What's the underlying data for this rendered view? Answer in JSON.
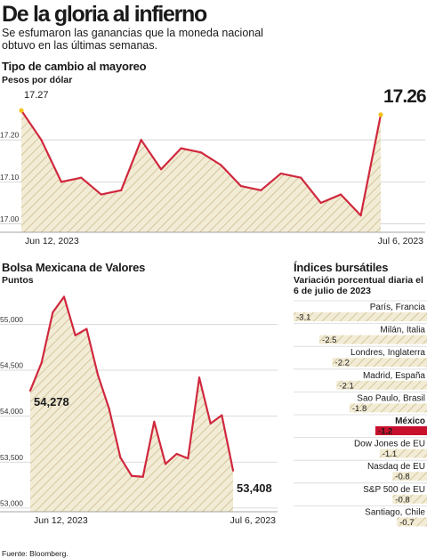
{
  "headline": "De la gloria al infierno",
  "subtitle": "Se esfumaron las ganancias que la moneda nacional obtuvo en las últimas semanas.",
  "source": "Fuente: Bloomberg.",
  "colors": {
    "line": "#d0283e",
    "fill": "#f2ecd6",
    "hatch": "#c8b784",
    "marker": "#f5c21b",
    "highlight": "#c8102e",
    "grid": "#cfcfcf"
  },
  "chart_data": [
    {
      "type": "area",
      "title": "Tipo de cambio al mayoreo",
      "subtitle": "Pesos por dólar",
      "x_start_label": "Jun 12, 2023",
      "x_end_label": "Jul 6, 2023",
      "start_value_label": "17.27",
      "end_value_label": "17.26",
      "ylim": [
        16.98,
        17.3
      ],
      "yticks": [
        17.0,
        17.1,
        17.2
      ],
      "ytick_labels": [
        "17.00",
        "17.10",
        "17.20"
      ],
      "values": [
        17.27,
        17.2,
        17.1,
        17.11,
        17.07,
        17.08,
        17.2,
        17.13,
        17.18,
        17.17,
        17.14,
        17.09,
        17.08,
        17.12,
        17.11,
        17.05,
        17.07,
        17.02,
        17.26
      ]
    },
    {
      "type": "area",
      "title": "Bolsa Mexicana de Valores",
      "subtitle": "Puntos",
      "x_start_label": "Jun 12, 2023",
      "x_end_label": "Jul 6, 2023",
      "start_value_label": "54,278",
      "end_value_label": "53,408",
      "ylim": [
        52960,
        55430
      ],
      "yticks": [
        53000,
        53500,
        54000,
        54500,
        55000
      ],
      "ytick_labels": [
        "53,000",
        "53,500",
        "54,000",
        "54,500",
        "55,000"
      ],
      "values": [
        54278,
        54580,
        55130,
        55300,
        54880,
        54950,
        54450,
        54080,
        53550,
        53350,
        53340,
        53940,
        53480,
        53590,
        53540,
        54420,
        53920,
        54010,
        53408
      ]
    },
    {
      "type": "bar",
      "title": "Índices bursátiles",
      "subtitle": "Variación porcentual diaria el 6 de julio de 2023",
      "categories": [
        "París, Francia",
        "Milán, Italia",
        "Londres, Inglaterra",
        "Madrid, España",
        "Sao Paulo, Brasil",
        "México",
        "Dow Jones de EU",
        "Nasdaq de EU",
        "S&P 500 de EU",
        "Santiago, Chile"
      ],
      "values": [
        -3.1,
        -2.5,
        -2.2,
        -2.1,
        -1.8,
        -1.2,
        -1.1,
        -0.8,
        -0.8,
        -0.7
      ],
      "value_labels": [
        "-3.1",
        "-2.5",
        "-2.2",
        "-2.1",
        "-1.8",
        "-1.2",
        "-1.1",
        "-0.8",
        "-0.8",
        "-0.7"
      ],
      "highlight": "México"
    }
  ]
}
